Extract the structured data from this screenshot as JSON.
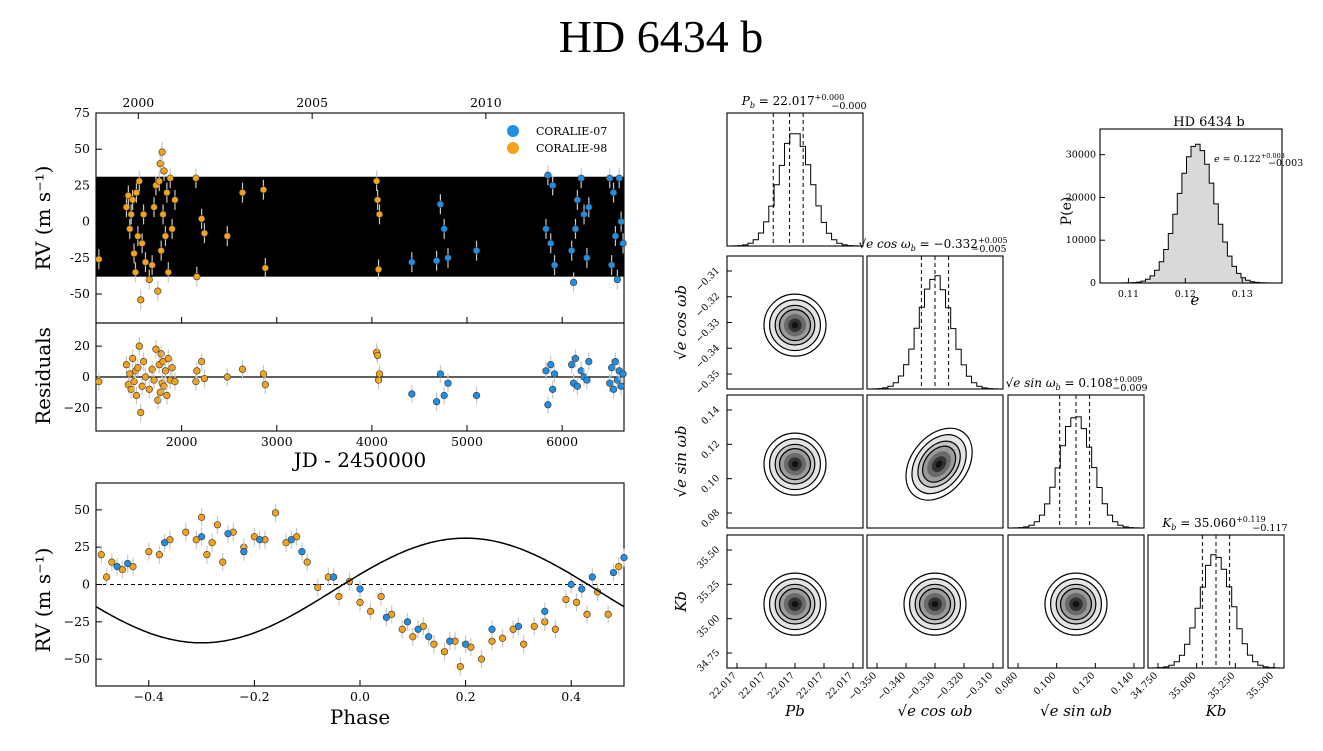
{
  "title": "HD 6434 b",
  "colors": {
    "coralie07": "#1f8fe6",
    "coralie98": "#f3a21a",
    "band": "#000000",
    "errbar": "#c8c8c8"
  },
  "chart_data": [
    {
      "id": "rv_time",
      "type": "scatter",
      "xlabel": "JD - 2450000",
      "ylabel": "RV (m s⁻¹)",
      "xlim": [
        1100,
        6650
      ],
      "ylim": [
        -70,
        75
      ],
      "xticks": [
        2000,
        3000,
        4000,
        5000,
        6000
      ],
      "yticks": [
        -50,
        -25,
        0,
        25,
        50,
        75
      ],
      "top_axis_label_years": [
        "2000",
        "2005",
        "2010"
      ],
      "top_axis_jd": [
        1545,
        3372,
        5198
      ],
      "model_band": [
        -38,
        31
      ],
      "legend": [
        "CORALIE-07",
        "CORALIE-98"
      ],
      "legend_position": "top-right",
      "series": [
        {
          "name": "CORALIE-98",
          "points": [
            [
              1130,
              -26
            ],
            [
              1420,
              10
            ],
            [
              1440,
              18
            ],
            [
              1455,
              -5
            ],
            [
              1470,
              5
            ],
            [
              1485,
              15
            ],
            [
              1500,
              -22
            ],
            [
              1515,
              -35
            ],
            [
              1525,
              20
            ],
            [
              1540,
              -10
            ],
            [
              1555,
              28
            ],
            [
              1570,
              -54
            ],
            [
              1585,
              -15
            ],
            [
              1600,
              5
            ],
            [
              1620,
              -28
            ],
            [
              1660,
              -40
            ],
            [
              1690,
              -30
            ],
            [
              1710,
              10
            ],
            [
              1730,
              25
            ],
            [
              1750,
              -48
            ],
            [
              1765,
              28
            ],
            [
              1775,
              40
            ],
            [
              1785,
              -20
            ],
            [
              1795,
              48
            ],
            [
              1805,
              5
            ],
            [
              1815,
              35
            ],
            [
              1830,
              -10
            ],
            [
              1845,
              20
            ],
            [
              1860,
              -35
            ],
            [
              1880,
              30
            ],
            [
              1900,
              -5
            ],
            [
              1930,
              15
            ],
            [
              2150,
              30
            ],
            [
              2160,
              -38
            ],
            [
              2210,
              2
            ],
            [
              2240,
              -8
            ],
            [
              2480,
              -10
            ],
            [
              2640,
              20
            ],
            [
              2860,
              22
            ],
            [
              2880,
              -32
            ],
            [
              4050,
              28
            ],
            [
              4060,
              15
            ],
            [
              4070,
              -33
            ],
            [
              4080,
              5
            ]
          ]
        },
        {
          "name": "CORALIE-07",
          "points": [
            [
              4420,
              -28
            ],
            [
              4680,
              -27
            ],
            [
              4720,
              12
            ],
            [
              4760,
              -5
            ],
            [
              4800,
              -25
            ],
            [
              5100,
              -20
            ],
            [
              5830,
              -5
            ],
            [
              5850,
              32
            ],
            [
              5880,
              -15
            ],
            [
              5900,
              25
            ],
            [
              5920,
              -30
            ],
            [
              6100,
              -20
            ],
            [
              6120,
              -42
            ],
            [
              6140,
              -5
            ],
            [
              6160,
              15
            ],
            [
              6200,
              30
            ],
            [
              6230,
              5
            ],
            [
              6260,
              -25
            ],
            [
              6280,
              10
            ],
            [
              6500,
              30
            ],
            [
              6520,
              -30
            ],
            [
              6540,
              20
            ],
            [
              6560,
              -10
            ],
            [
              6580,
              -40
            ],
            [
              6600,
              30
            ],
            [
              6620,
              0
            ],
            [
              6640,
              -15
            ]
          ]
        }
      ]
    },
    {
      "id": "residuals",
      "type": "scatter",
      "xlabel": "JD - 2450000",
      "ylabel": "Residuals",
      "xlim": [
        1100,
        6650
      ],
      "ylim": [
        -35,
        35
      ],
      "xticks": [
        2000,
        3000,
        4000,
        5000,
        6000
      ],
      "yticks": [
        -20,
        0,
        20
      ],
      "series": [
        {
          "name": "CORALIE-98",
          "points": [
            [
              1130,
              -3
            ],
            [
              1420,
              8
            ],
            [
              1440,
              -5
            ],
            [
              1455,
              2
            ],
            [
              1470,
              -8
            ],
            [
              1485,
              12
            ],
            [
              1500,
              -3
            ],
            [
              1515,
              4
            ],
            [
              1525,
              -12
            ],
            [
              1540,
              6
            ],
            [
              1555,
              20
            ],
            [
              1570,
              -23
            ],
            [
              1585,
              -6
            ],
            [
              1600,
              10
            ],
            [
              1620,
              0
            ],
            [
              1660,
              -8
            ],
            [
              1690,
              5
            ],
            [
              1710,
              -2
            ],
            [
              1730,
              18
            ],
            [
              1750,
              -15
            ],
            [
              1765,
              8
            ],
            [
              1775,
              -10
            ],
            [
              1785,
              15
            ],
            [
              1795,
              -4
            ],
            [
              1805,
              10
            ],
            [
              1815,
              -6
            ],
            [
              1830,
              4
            ],
            [
              1845,
              -12
            ],
            [
              1860,
              12
            ],
            [
              1880,
              -2
            ],
            [
              1900,
              6
            ],
            [
              1930,
              -3
            ],
            [
              2150,
              -3
            ],
            [
              2160,
              4
            ],
            [
              2210,
              10
            ],
            [
              2240,
              -1
            ],
            [
              2480,
              0
            ],
            [
              2640,
              5
            ],
            [
              2860,
              2
            ],
            [
              2880,
              -5
            ],
            [
              4050,
              16
            ],
            [
              4060,
              14
            ],
            [
              4070,
              -2
            ],
            [
              4080,
              2
            ]
          ]
        },
        {
          "name": "CORALIE-07",
          "points": [
            [
              4420,
              -11
            ],
            [
              4680,
              -16
            ],
            [
              4720,
              2
            ],
            [
              4760,
              -12
            ],
            [
              4800,
              -4
            ],
            [
              5100,
              -12
            ],
            [
              5830,
              4
            ],
            [
              5850,
              -18
            ],
            [
              5880,
              8
            ],
            [
              5900,
              -8
            ],
            [
              5920,
              2
            ],
            [
              6100,
              8
            ],
            [
              6120,
              -4
            ],
            [
              6140,
              12
            ],
            [
              6160,
              -6
            ],
            [
              6200,
              4
            ],
            [
              6230,
              0
            ],
            [
              6260,
              -2
            ],
            [
              6280,
              10
            ],
            [
              6500,
              -4
            ],
            [
              6520,
              6
            ],
            [
              6540,
              -8
            ],
            [
              6560,
              10
            ],
            [
              6580,
              -2
            ],
            [
              6600,
              4
            ],
            [
              6620,
              -6
            ],
            [
              6640,
              2
            ]
          ]
        }
      ]
    },
    {
      "id": "rv_phase",
      "type": "scatter",
      "xlabel": "Phase",
      "ylabel": "RV (m s⁻¹)",
      "xlim": [
        -0.5,
        0.5
      ],
      "ylim": [
        -68,
        68
      ],
      "xticks": [
        -0.4,
        -0.2,
        0.0,
        0.2,
        0.4
      ],
      "yticks": [
        -50,
        -25,
        0,
        25,
        50
      ],
      "model": {
        "K": 35.06,
        "phase_offset": 0.09,
        "offset": -4
      },
      "series": [
        {
          "name": "CORALIE-98",
          "points": [
            [
              -0.49,
              20
            ],
            [
              -0.48,
              5
            ],
            [
              -0.47,
              15
            ],
            [
              -0.45,
              10
            ],
            [
              -0.43,
              12
            ],
            [
              -0.4,
              22
            ],
            [
              -0.38,
              20
            ],
            [
              -0.36,
              30
            ],
            [
              -0.33,
              35
            ],
            [
              -0.31,
              30
            ],
            [
              -0.3,
              45
            ],
            [
              -0.29,
              20
            ],
            [
              -0.28,
              28
            ],
            [
              -0.27,
              40
            ],
            [
              -0.26,
              15
            ],
            [
              -0.24,
              35
            ],
            [
              -0.22,
              25
            ],
            [
              -0.2,
              32
            ],
            [
              -0.18,
              30
            ],
            [
              -0.16,
              48
            ],
            [
              -0.14,
              28
            ],
            [
              -0.12,
              32
            ],
            [
              -0.1,
              15
            ],
            [
              -0.08,
              -2
            ],
            [
              -0.06,
              5
            ],
            [
              -0.04,
              -8
            ],
            [
              -0.02,
              2
            ],
            [
              0.0,
              -12
            ],
            [
              0.02,
              -18
            ],
            [
              0.04,
              -8
            ],
            [
              0.06,
              -20
            ],
            [
              0.08,
              -30
            ],
            [
              0.1,
              -35
            ],
            [
              0.12,
              -28
            ],
            [
              0.14,
              -40
            ],
            [
              0.16,
              -45
            ],
            [
              0.18,
              -38
            ],
            [
              0.19,
              -55
            ],
            [
              0.21,
              -42
            ],
            [
              0.23,
              -50
            ],
            [
              0.25,
              -38
            ],
            [
              0.27,
              -36
            ],
            [
              0.29,
              -30
            ],
            [
              0.31,
              -40
            ],
            [
              0.33,
              -28
            ],
            [
              0.35,
              -25
            ],
            [
              0.37,
              -30
            ],
            [
              0.39,
              -10
            ],
            [
              0.41,
              -12
            ],
            [
              0.43,
              -20
            ],
            [
              0.45,
              -5
            ],
            [
              0.47,
              -20
            ],
            [
              0.49,
              12
            ]
          ]
        },
        {
          "name": "CORALIE-07",
          "points": [
            [
              -0.46,
              12
            ],
            [
              -0.44,
              14
            ],
            [
              -0.37,
              28
            ],
            [
              -0.3,
              32
            ],
            [
              -0.25,
              34
            ],
            [
              -0.22,
              22
            ],
            [
              -0.19,
              30
            ],
            [
              -0.13,
              30
            ],
            [
              -0.11,
              22
            ],
            [
              -0.05,
              5
            ],
            [
              0.0,
              -3
            ],
            [
              0.05,
              -22
            ],
            [
              0.09,
              -25
            ],
            [
              0.11,
              -30
            ],
            [
              0.13,
              -35
            ],
            [
              0.17,
              -38
            ],
            [
              0.2,
              -40
            ],
            [
              0.25,
              -30
            ],
            [
              0.3,
              -28
            ],
            [
              0.35,
              -18
            ],
            [
              0.4,
              0
            ],
            [
              0.42,
              -3
            ],
            [
              0.44,
              5
            ],
            [
              0.48,
              8
            ],
            [
              0.5,
              18
            ]
          ]
        }
      ]
    },
    {
      "id": "corner",
      "type": "histogram",
      "params": [
        "P_b",
        "√e cos ω_b",
        "√e sin ω_b",
        "K_b"
      ],
      "bottom_labels": [
        "Pb",
        "√e cos ωb",
        "√e sin ωb",
        "Kb"
      ],
      "left_labels": [
        "√e cos ωb",
        "√e sin ωb",
        "Kb"
      ],
      "hist_titles": [
        {
          "name": "P",
          "sub": "b",
          "value": "= 22.017",
          "up": "+0.000",
          "down": "−0.000"
        },
        {
          "name": "√e cos ω",
          "sub": "b",
          "value": "= −0.332",
          "up": "+0.005",
          "down": "−0.005"
        },
        {
          "name": "√e sin ω",
          "sub": "b",
          "value": "= 0.108",
          "up": "+0.009",
          "down": "−0.009"
        },
        {
          "name": "K",
          "sub": "b",
          "value": "= 35.060",
          "up": "+0.119",
          "down": "−0.117"
        }
      ],
      "ticks": [
        [
          "22.017",
          "22.017",
          "22.017",
          "22.017",
          "22.017"
        ],
        [
          "−0.350",
          "−0.340",
          "−0.330",
          "−0.320",
          "−0.310"
        ],
        [
          "0.080",
          "0.100",
          "0.120",
          "0.140"
        ],
        [
          "34.750",
          "35.000",
          "35.250",
          "35.500"
        ]
      ],
      "yticks": [
        [
          "−0.31",
          "−0.32",
          "−0.33",
          "−0.34",
          "−0.35"
        ],
        [
          "0.14",
          "0.12",
          "0.10",
          "0.08"
        ],
        [
          "35.50",
          "35.25",
          "35.00",
          "34.75"
        ]
      ],
      "medians": [
        22.017,
        -0.332,
        0.108,
        35.06
      ],
      "sigmas": [
        0.0,
        0.005,
        0.009,
        0.118
      ]
    },
    {
      "id": "ecc_hist",
      "type": "histogram",
      "title": "HD 6434 b",
      "xlabel": "e",
      "ylabel": "P(e)",
      "xlim": [
        0.105,
        0.137
      ],
      "ylim": [
        0,
        36000
      ],
      "xticks": [
        0.11,
        0.12,
        0.13
      ],
      "yticks": [
        0,
        10000,
        20000,
        30000
      ],
      "annotation": {
        "name": "e",
        "value": "= 0.122",
        "up": "+0.003",
        "down": "−0.003"
      },
      "median": 0.122,
      "sigma": 0.0032,
      "peak": 32500
    }
  ]
}
